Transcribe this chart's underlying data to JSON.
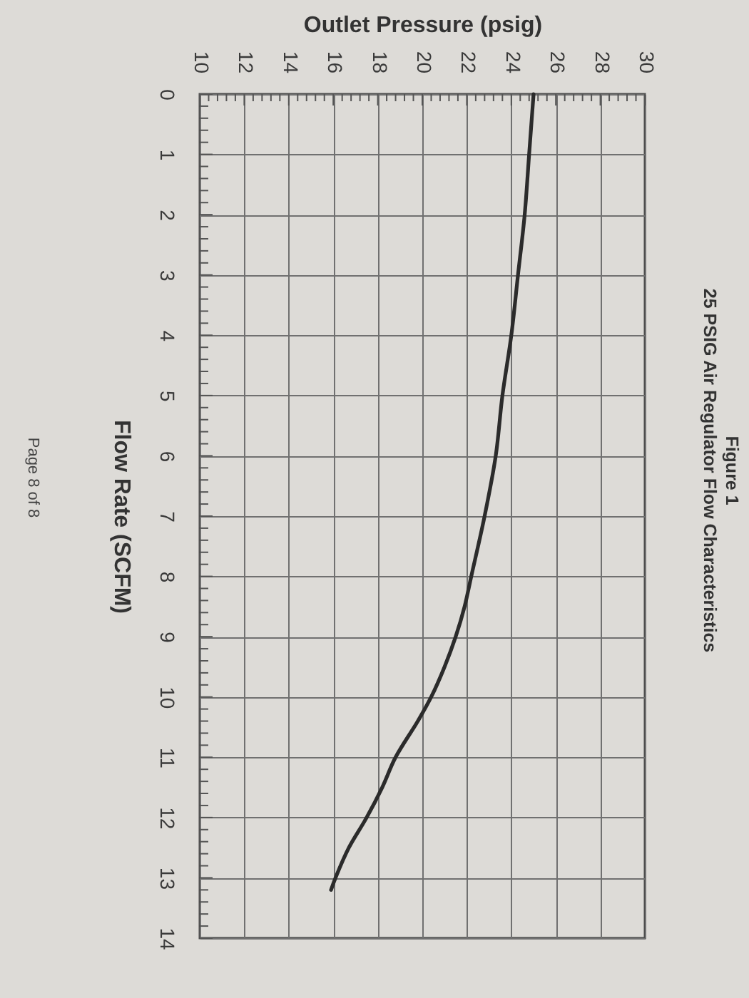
{
  "chart_data": {
    "type": "line",
    "title": "Figure 1",
    "subtitle": "25 PSIG Air Regulator Flow Characteristics",
    "xlabel": "Outlet Pressure (psig)",
    "ylabel": "Flow Rate (SCFM)",
    "annotations": [
      "Page 8 of 8"
    ],
    "series": [
      {
        "color": "#2b2b2b",
        "x": [
          25.0,
          24.8,
          24.6,
          24.3,
          24.0,
          23.6,
          23.3,
          22.8,
          22.2,
          21.9,
          21.5,
          21.0,
          20.4,
          19.8,
          18.8,
          18.2,
          17.5,
          16.7,
          16.1,
          15.9
        ],
        "values": [
          0,
          1,
          2,
          3,
          4,
          5,
          6,
          7,
          8,
          8.5,
          9,
          9.5,
          10,
          10.4,
          11,
          11.5,
          12,
          12.5,
          13,
          13.2
        ]
      }
    ],
    "xlim": [
      10,
      30
    ],
    "xticks": [
      10,
      {
        "value": 10.4,
        "label": null
      },
      {
        "value": 10.8,
        "label": null
      },
      {
        "value": 11.2,
        "label": null
      },
      {
        "value": 11.6,
        "label": null
      },
      12,
      {
        "value": 12.4,
        "label": null
      },
      {
        "value": 12.8,
        "label": null
      },
      {
        "value": 13.2,
        "label": null
      },
      {
        "value": 13.6,
        "label": null
      },
      14,
      {
        "value": 14.4,
        "label": null
      },
      {
        "value": 14.8,
        "label": null
      },
      {
        "value": 15.2,
        "label": null
      },
      {
        "value": 15.6,
        "label": null
      },
      16,
      {
        "value": 16.4,
        "label": null
      },
      {
        "value": 16.8,
        "label": null
      },
      {
        "value": 17.2,
        "label": null
      },
      {
        "value": 17.6,
        "label": null
      },
      18,
      {
        "value": 18.4,
        "label": null
      },
      {
        "value": 18.8,
        "label": null
      },
      {
        "value": 19.2,
        "label": null
      },
      {
        "value": 19.6,
        "label": null
      },
      20,
      {
        "value": 20.4,
        "label": null
      },
      {
        "value": 20.8,
        "label": null
      },
      {
        "value": 21.2,
        "label": null
      },
      {
        "value": 21.6,
        "label": null
      },
      22,
      {
        "value": 22.4,
        "label": null
      },
      {
        "value": 22.8,
        "label": null
      },
      {
        "value": 23.2,
        "label": null
      },
      {
        "value": 23.6,
        "label": null
      },
      24,
      {
        "value": 24.4,
        "label": null
      },
      {
        "value": 24.8,
        "label": null
      },
      {
        "value": 25.2,
        "label": null
      },
      {
        "value": 25.6,
        "label": null
      },
      26,
      {
        "value": 26.4,
        "label": null
      },
      {
        "value": 26.8,
        "label": null
      },
      {
        "value": 27.2,
        "label": null
      },
      {
        "value": 27.6,
        "label": null
      },
      28,
      {
        "value": 28.4,
        "label": null
      },
      {
        "value": 28.8,
        "label": null
      },
      {
        "value": 29.2,
        "label": null
      },
      {
        "value": 29.6,
        "label": null
      },
      30
    ],
    "ylim": [
      14,
      0
    ],
    "yticks": [
      0,
      {
        "value": 0.2,
        "label": null
      },
      {
        "value": 0.4,
        "label": null
      },
      {
        "value": 0.6,
        "label": null
      },
      {
        "value": 0.8,
        "label": null
      },
      1,
      {
        "value": 1.2,
        "label": null
      },
      {
        "value": 1.4,
        "label": null
      },
      {
        "value": 1.6,
        "label": null
      },
      {
        "value": 1.8,
        "label": null
      },
      2,
      {
        "value": 2.2,
        "label": null
      },
      {
        "value": 2.4,
        "label": null
      },
      {
        "value": 2.6,
        "label": null
      },
      {
        "value": 2.8,
        "label": null
      },
      3,
      {
        "value": 3.2,
        "label": null
      },
      {
        "value": 3.4,
        "label": null
      },
      {
        "value": 3.6,
        "label": null
      },
      {
        "value": 3.8,
        "label": null
      },
      4,
      {
        "value": 4.2,
        "label": null
      },
      {
        "value": 4.4,
        "label": null
      },
      {
        "value": 4.6,
        "label": null
      },
      {
        "value": 4.8,
        "label": null
      },
      5,
      {
        "value": 5.2,
        "label": null
      },
      {
        "value": 5.4,
        "label": null
      },
      {
        "value": 5.6,
        "label": null
      },
      {
        "value": 5.8,
        "label": null
      },
      6,
      {
        "value": 6.2,
        "label": null
      },
      {
        "value": 6.4,
        "label": null
      },
      {
        "value": 6.6,
        "label": null
      },
      {
        "value": 6.8,
        "label": null
      },
      7,
      {
        "value": 7.2,
        "label": null
      },
      {
        "value": 7.4,
        "label": null
      },
      {
        "value": 7.6,
        "label": null
      },
      {
        "value": 7.8,
        "label": null
      },
      8,
      {
        "value": 8.2,
        "label": null
      },
      {
        "value": 8.4,
        "label": null
      },
      {
        "value": 8.6,
        "label": null
      },
      {
        "value": 8.8,
        "label": null
      },
      9,
      {
        "value": 9.2,
        "label": null
      },
      {
        "value": 9.4,
        "label": null
      },
      {
        "value": 9.6,
        "label": null
      },
      {
        "value": 9.8,
        "label": null
      },
      10,
      {
        "value": 10.2,
        "label": null
      },
      {
        "value": 10.4,
        "label": null
      },
      {
        "value": 10.6,
        "label": null
      },
      {
        "value": 10.8,
        "label": null
      },
      11,
      {
        "value": 11.2,
        "label": null
      },
      {
        "value": 11.4,
        "label": null
      },
      {
        "value": 11.6,
        "label": null
      },
      {
        "value": 11.8,
        "label": null
      },
      12,
      {
        "value": 12.2,
        "label": null
      },
      {
        "value": 12.4,
        "label": null
      },
      {
        "value": 12.6,
        "label": null
      },
      {
        "value": 12.8,
        "label": null
      },
      13,
      {
        "value": 13.2,
        "label": null
      },
      {
        "value": 13.4,
        "label": null
      },
      {
        "value": 13.6,
        "label": null
      },
      {
        "value": 13.8,
        "label": null
      },
      14
    ],
    "grid": true,
    "line_style": "solid"
  }
}
